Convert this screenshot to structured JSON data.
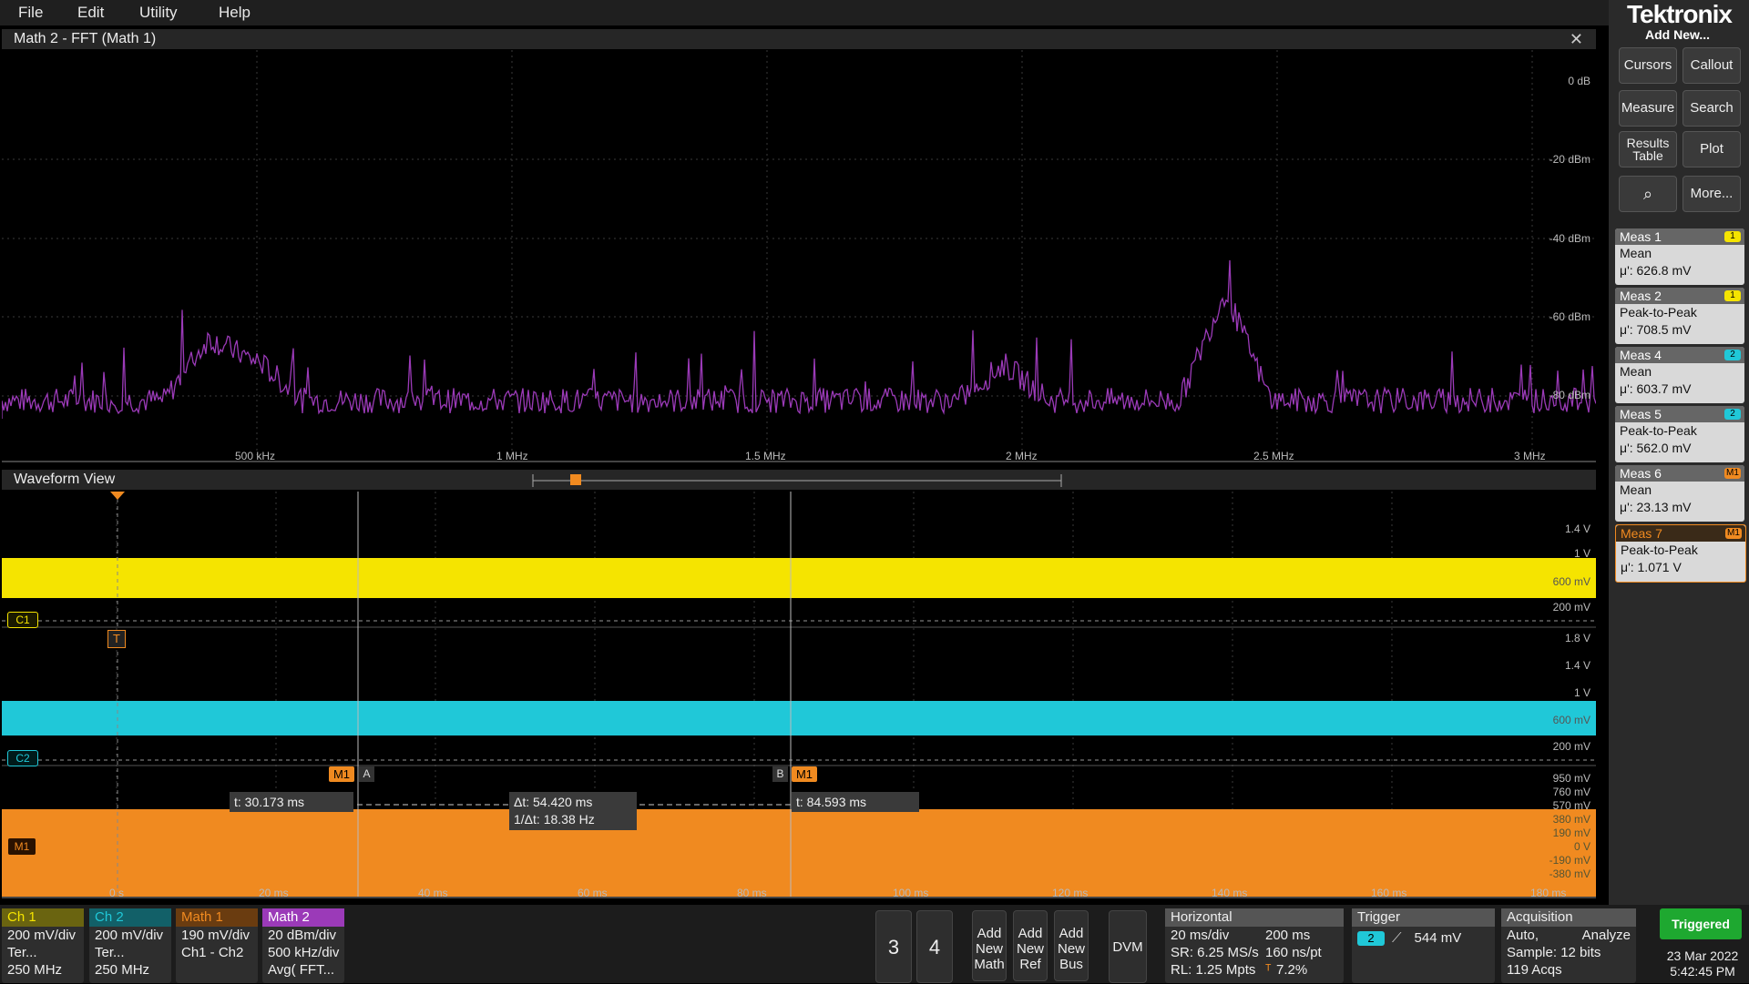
{
  "menu": [
    "File",
    "Edit",
    "Utility",
    "Help"
  ],
  "brand": "Tektronix",
  "add_new": "Add New...",
  "buttons": {
    "cursors": "Cursors",
    "callout": "Callout",
    "measure": "Measure",
    "search": "Search",
    "results_table": "Results Table",
    "plot": "Plot",
    "more": "More..."
  },
  "measurements": [
    {
      "name": "Meas 1",
      "badge": "1",
      "type": "Mean",
      "value": "μ': 626.8 mV",
      "color": "#f5e400"
    },
    {
      "name": "Meas 2",
      "badge": "1",
      "type": "Peak-to-Peak",
      "value": "μ': 708.5 mV",
      "color": "#f5e400"
    },
    {
      "name": "Meas 4",
      "badge": "2",
      "type": "Mean",
      "value": "μ': 603.7 mV",
      "color": "#20c8d8"
    },
    {
      "name": "Meas 5",
      "badge": "2",
      "type": "Peak-to-Peak",
      "value": "μ': 562.0 mV",
      "color": "#20c8d8"
    },
    {
      "name": "Meas 6",
      "badge": "M1",
      "type": "Mean",
      "value": "μ': 23.13 mV",
      "color": "#f08a20"
    },
    {
      "name": "Meas 7",
      "badge": "M1",
      "type": "Peak-to-Peak",
      "value": "μ': 1.071 V",
      "color": "#f08a20"
    }
  ],
  "fft": {
    "title": "Math 2 - FFT (Math 1)",
    "ylabels": [
      "0 dB",
      "-20 dBm",
      "-40 dBm",
      "-60 dBm",
      "-80 dBm"
    ],
    "xlabels": [
      "500 kHz",
      "1 MHz",
      "1.5 MHz",
      "2 MHz",
      "2.5 MHz",
      "3 MHz"
    ]
  },
  "waveform": {
    "title": "Waveform View",
    "ch1_labels": [
      "1.4 V",
      "1 V",
      "600 mV",
      "200 mV"
    ],
    "ch2_labels": [
      "1.8 V",
      "1.4 V",
      "1 V",
      "600 mV",
      "200 mV"
    ],
    "m1_labels": [
      "950 mV",
      "760 mV",
      "570 mV",
      "380 mV",
      "190 mV",
      "0 V",
      "-190 mV",
      "-380 mV"
    ],
    "xlabels": [
      "0 s",
      "20 ms",
      "40 ms",
      "60 ms",
      "80 ms",
      "100 ms",
      "120 ms",
      "140 ms",
      "160 ms",
      "180 ms"
    ],
    "ch1_tag": "C1",
    "ch2_tag": "C2",
    "m1_tag": "M1",
    "trigger_tag": "T",
    "cursor_a": "A",
    "cursor_b": "B",
    "cursor_a_time": "t: 30.173 ms",
    "cursor_b_time": "t: 84.593 ms",
    "delta_t": "Δt: 54.420 ms",
    "inv_delta_t": "1/Δt: 18.38 Hz"
  },
  "channels": [
    {
      "name": "Ch 1",
      "l1": "200 mV/div",
      "l2": "Ter...",
      "l3": "250 MHz",
      "color": "#f5e400",
      "text": "#000"
    },
    {
      "name": "Ch 2",
      "l1": "200 mV/div",
      "l2": "Ter...",
      "l3": "250 MHz",
      "color": "#20c8d8",
      "text": "#000"
    },
    {
      "name": "Math 1",
      "l1": "190 mV/div",
      "l2": "Ch1 - Ch2",
      "l3": "",
      "color": "#f08a20",
      "text": "#000"
    },
    {
      "name": "Math 2",
      "l1": "20 dBm/div",
      "l2": "500 kHz/div",
      "l3": "Avg( FFT...",
      "color": "#9b3ab8",
      "text": "#fff"
    }
  ],
  "num_buttons": [
    "3",
    "4"
  ],
  "add_buttons": [
    {
      "l1": "Add",
      "l2": "New",
      "l3": "Math"
    },
    {
      "l1": "Add",
      "l2": "New",
      "l3": "Ref"
    },
    {
      "l1": "Add",
      "l2": "New",
      "l3": "Bus"
    }
  ],
  "dvm": "DVM",
  "horizontal": {
    "title": "Horizontal",
    "scale": "20 ms/div",
    "duration": "200 ms",
    "sr": "SR: 6.25 MS/s",
    "pt": "160 ns/pt",
    "rl": "RL: 1.25 Mpts",
    "pos": "7.2%"
  },
  "trigger": {
    "title": "Trigger",
    "source": "2",
    "level": "544 mV"
  },
  "acquisition": {
    "title": "Acquisition",
    "mode": "Auto,",
    "analyze": "Analyze",
    "sample": "Sample: 12 bits",
    "acqs": "119 Acqs"
  },
  "status": "Triggered",
  "date": "23 Mar 2022",
  "time": "5:42:45 PM"
}
